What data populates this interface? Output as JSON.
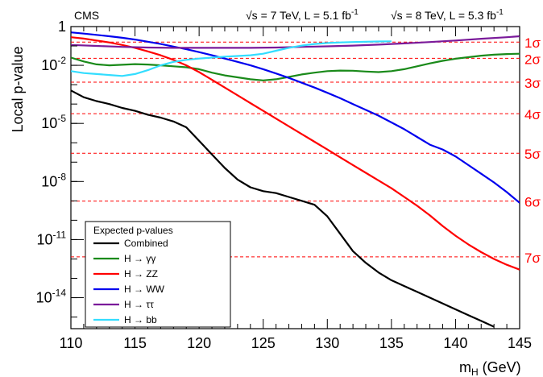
{
  "header": {
    "experiment": "CMS",
    "energy_7": "√s = 7 TeV, L = 5.1 fb",
    "lumi_exp_7": "-1",
    "energy_8": "√s = 8 TeV, L = 5.3 fb",
    "lumi_exp_8": "-1"
  },
  "chart_data": {
    "type": "line",
    "xlabel_main": "m",
    "xlabel_sub": "H",
    "xlabel_unit": " (GeV)",
    "ylabel": "Local p-value",
    "xlim": [
      110,
      145
    ],
    "ylim_log10": [
      -15.6,
      0
    ],
    "y_scale": "log",
    "x_ticks": [
      110,
      115,
      120,
      125,
      130,
      135,
      140,
      145
    ],
    "y_ticks": [
      {
        "exp": 0,
        "label": "1",
        "sup": ""
      },
      {
        "exp": -2,
        "label": "10",
        "sup": "-2"
      },
      {
        "exp": -5,
        "label": "10",
        "sup": "-5"
      },
      {
        "exp": -8,
        "label": "10",
        "sup": "-8"
      },
      {
        "exp": -11,
        "label": "10",
        "sup": "-11"
      },
      {
        "exp": -14,
        "label": "10",
        "sup": "-14"
      }
    ],
    "sigma_lines": [
      {
        "label": "1σ",
        "log10p": -0.8
      },
      {
        "label": "2σ",
        "log10p": -1.64
      },
      {
        "label": "3σ",
        "log10p": -2.87
      },
      {
        "label": "4σ",
        "log10p": -4.5
      },
      {
        "label": "5σ",
        "log10p": -6.54
      },
      {
        "label": "6σ",
        "log10p": -9.01
      },
      {
        "label": "7σ",
        "log10p": -11.89
      }
    ],
    "sigma_color": "#ff0000",
    "legend": {
      "title": "Expected p-values",
      "placement": "bottom-left"
    },
    "series": [
      {
        "name": "Combined",
        "color": "#000000",
        "x": [
          110,
          111,
          112,
          113,
          114,
          115,
          116,
          117,
          118,
          119,
          120,
          121,
          122,
          123,
          124,
          125,
          126,
          127,
          128,
          129,
          130,
          131,
          132,
          133,
          134,
          135,
          136,
          137,
          138,
          139,
          140,
          141,
          142,
          143
        ],
        "log10p": [
          -3.3,
          -3.65,
          -3.85,
          -4.0,
          -4.2,
          -4.35,
          -4.55,
          -4.7,
          -4.9,
          -5.2,
          -5.9,
          -6.6,
          -7.3,
          -7.9,
          -8.3,
          -8.5,
          -8.6,
          -8.8,
          -9.0,
          -9.2,
          -9.8,
          -10.7,
          -11.6,
          -12.2,
          -12.7,
          -13.1,
          -13.4,
          -13.7,
          -14.0,
          -14.3,
          -14.6,
          -14.9,
          -15.2,
          -15.5
        ]
      },
      {
        "name": "H → γγ",
        "color": "#1a8a1a",
        "x": [
          110,
          111,
          112,
          113,
          114,
          115,
          116,
          117,
          118,
          119,
          120,
          121,
          122,
          123,
          124,
          125,
          126,
          127,
          128,
          129,
          130,
          131,
          132,
          133,
          134,
          135,
          136,
          137,
          138,
          139,
          140,
          141,
          142,
          143,
          144,
          145
        ],
        "log10p": [
          -1.6,
          -1.8,
          -1.95,
          -2.0,
          -1.97,
          -1.94,
          -1.96,
          -2.0,
          -2.05,
          -2.1,
          -2.2,
          -2.38,
          -2.52,
          -2.62,
          -2.72,
          -2.78,
          -2.72,
          -2.6,
          -2.47,
          -2.38,
          -2.3,
          -2.27,
          -2.28,
          -2.32,
          -2.35,
          -2.3,
          -2.2,
          -2.05,
          -1.9,
          -1.77,
          -1.66,
          -1.58,
          -1.5,
          -1.45,
          -1.42,
          -1.4
        ]
      },
      {
        "name": "H → ZZ",
        "color": "#ff0000",
        "x": [
          110,
          111,
          112,
          113,
          114,
          115,
          116,
          117,
          118,
          119,
          120,
          121,
          122,
          123,
          124,
          125,
          126,
          127,
          128,
          129,
          130,
          131,
          132,
          133,
          134,
          135,
          136,
          137,
          138,
          139,
          140,
          141,
          142,
          143,
          144,
          145
        ],
        "log10p": [
          -0.55,
          -0.62,
          -0.72,
          -0.82,
          -0.95,
          -1.1,
          -1.28,
          -1.48,
          -1.72,
          -2.0,
          -2.35,
          -2.75,
          -3.15,
          -3.55,
          -3.95,
          -4.35,
          -4.75,
          -5.15,
          -5.55,
          -5.95,
          -6.35,
          -6.75,
          -7.15,
          -7.55,
          -7.95,
          -8.35,
          -8.8,
          -9.25,
          -9.75,
          -10.3,
          -10.8,
          -11.25,
          -11.65,
          -12.0,
          -12.3,
          -12.55
        ]
      },
      {
        "name": "H → WW",
        "color": "#0000ee",
        "x": [
          110,
          111,
          112,
          113,
          114,
          115,
          116,
          117,
          118,
          119,
          120,
          121,
          122,
          123,
          124,
          125,
          126,
          127,
          128,
          129,
          130,
          131,
          132,
          133,
          134,
          135,
          136,
          137,
          138,
          139,
          140,
          141,
          142,
          143,
          144,
          145
        ],
        "log10p": [
          -0.3,
          -0.36,
          -0.43,
          -0.5,
          -0.58,
          -0.67,
          -0.78,
          -0.9,
          -1.03,
          -1.17,
          -1.32,
          -1.48,
          -1.65,
          -1.82,
          -2.0,
          -2.2,
          -2.42,
          -2.65,
          -2.9,
          -3.15,
          -3.42,
          -3.7,
          -4.0,
          -4.3,
          -4.6,
          -4.95,
          -5.3,
          -5.7,
          -6.1,
          -6.35,
          -6.7,
          -7.15,
          -7.6,
          -8.05,
          -8.55,
          -9.1
        ]
      },
      {
        "name": "H → ττ",
        "color": "#7a1a9a",
        "x": [
          110,
          112,
          114,
          116,
          118,
          120,
          122,
          124,
          126,
          128,
          130,
          132,
          134,
          136,
          138,
          140,
          142,
          144,
          145
        ],
        "log10p": [
          -0.95,
          -1.0,
          -1.05,
          -1.08,
          -1.1,
          -1.1,
          -1.1,
          -1.1,
          -1.08,
          -1.05,
          -1.02,
          -0.98,
          -0.93,
          -0.87,
          -0.8,
          -0.72,
          -0.63,
          -0.55,
          -0.5
        ]
      },
      {
        "name": "H → bb",
        "color": "#33ddff",
        "x": [
          110,
          111,
          112,
          113,
          114,
          115,
          116,
          117,
          118,
          119,
          120,
          121,
          122,
          123,
          124,
          125,
          126,
          127,
          128,
          129,
          130,
          131,
          132,
          133,
          134,
          135
        ],
        "log10p": [
          -2.3,
          -2.4,
          -2.45,
          -2.5,
          -2.55,
          -2.45,
          -2.25,
          -2.0,
          -1.82,
          -1.72,
          -1.65,
          -1.6,
          -1.55,
          -1.52,
          -1.48,
          -1.4,
          -1.25,
          -1.1,
          -0.98,
          -0.9,
          -0.85,
          -0.82,
          -0.8,
          -0.78,
          -0.77,
          -0.76
        ]
      }
    ]
  }
}
